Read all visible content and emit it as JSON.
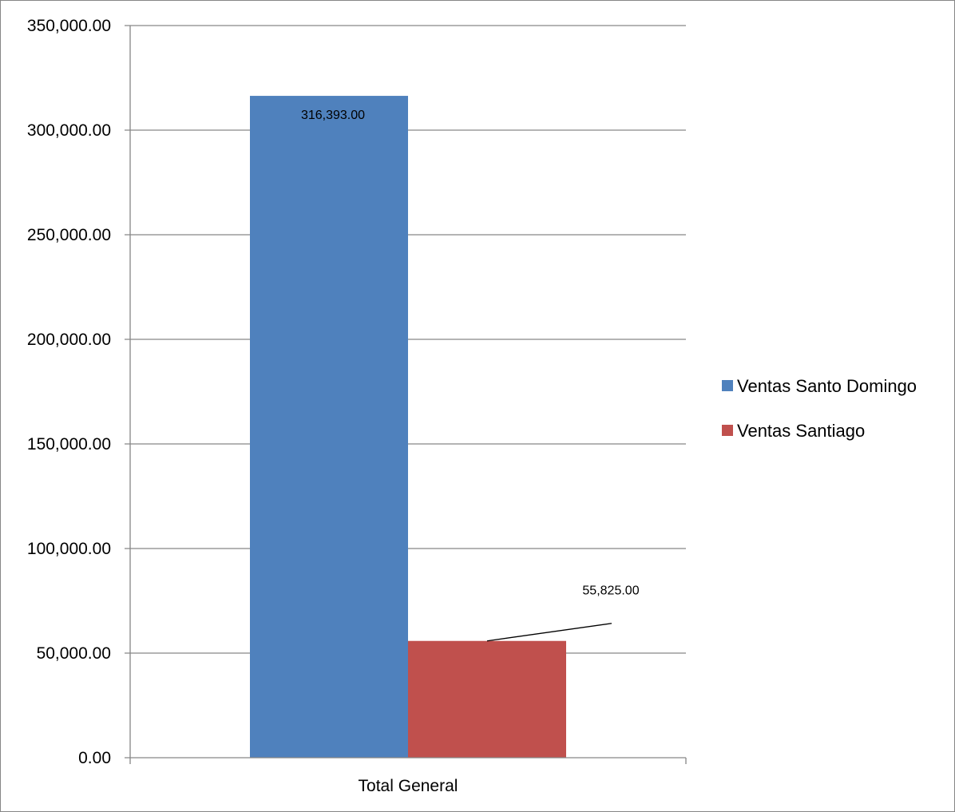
{
  "chart_data": {
    "type": "bar",
    "categories": [
      "Total General"
    ],
    "series": [
      {
        "name": "Ventas Santo Domingo",
        "values": [
          316393.0
        ],
        "label": "316,393.00",
        "color": "#4F81BD"
      },
      {
        "name": "Ventas Santiago",
        "values": [
          55825.0
        ],
        "label": "55,825.00",
        "color": "#C0504D"
      }
    ],
    "ylim": [
      0,
      350000
    ],
    "yticks": [
      {
        "value": 0,
        "label": "0.00"
      },
      {
        "value": 50000,
        "label": "50,000.00"
      },
      {
        "value": 100000,
        "label": "100,000.00"
      },
      {
        "value": 150000,
        "label": "150,000.00"
      },
      {
        "value": 200000,
        "label": "200,000.00"
      },
      {
        "value": 250000,
        "label": "250,000.00"
      },
      {
        "value": 300000,
        "label": "300,000.00"
      },
      {
        "value": 350000,
        "label": "350,000.00"
      }
    ],
    "grid": true,
    "legend": "right",
    "title": "",
    "xlabel": "",
    "ylabel": ""
  }
}
